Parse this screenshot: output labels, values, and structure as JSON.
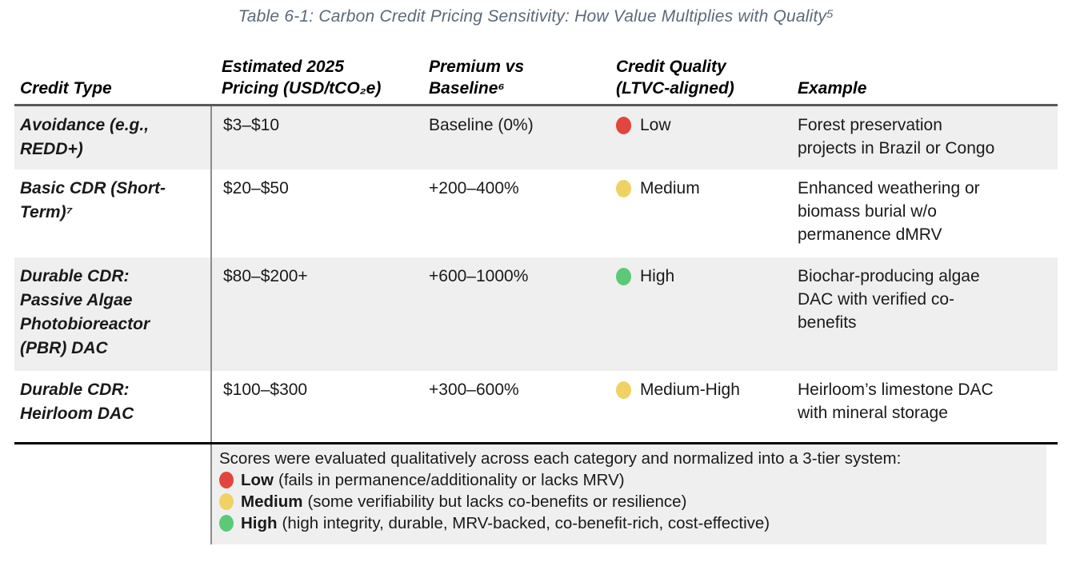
{
  "title": "Table 6-1: Carbon Credit Pricing Sensitivity: How Value Multiplies with Quality⁵",
  "columns": {
    "credit_type": "Credit Type",
    "pricing": "Estimated 2025\nPricing (USD/tCO₂e)",
    "premium": "Premium vs\nBaseline⁶",
    "quality": "Credit Quality\n(LTVC-aligned)",
    "example": "Example"
  },
  "rows": [
    {
      "type": "Avoidance (e.g.,\nREDD+)",
      "pricing": "$3–$10",
      "premium": "Baseline (0%)",
      "quality": {
        "level": "Low",
        "color": "red"
      },
      "example": "Forest preservation\nprojects in Brazil or Congo"
    },
    {
      "type": "Basic CDR (Short-\nTerm)⁷",
      "pricing": "$20–$50",
      "premium": "+200–400%",
      "quality": {
        "level": "Medium",
        "color": "yellow"
      },
      "example": "Enhanced weathering or\nbiomass burial w/o\npermanence dMRV"
    },
    {
      "type": "Durable CDR:\nPassive Algae\nPhotobioreactor\n(PBR) DAC",
      "pricing": "$80–$200+",
      "premium": "+600–1000%",
      "quality": {
        "level": "High",
        "color": "green"
      },
      "example": "Biochar-producing algae\nDAC with verified co-\nbenefits"
    },
    {
      "type": "Durable CDR:\nHeirloom DAC",
      "pricing": "$100–$300",
      "premium": "+300–600%",
      "quality": {
        "level": "Medium-High",
        "color": "yellow"
      },
      "example": "Heirloom’s limestone DAC\nwith mineral storage"
    }
  ],
  "legend": {
    "intro": "Scores were evaluated qualitatively across each category and normalized into a 3-tier system:",
    "tiers": [
      {
        "label": "Low",
        "desc": "(fails in permanence/additionality or lacks MRV)",
        "color": "red"
      },
      {
        "label": "Medium",
        "desc": "(some verifiability but lacks co-benefits or resilience)",
        "color": "yellow"
      },
      {
        "label": "High",
        "desc": "(high integrity, durable, MRV-backed, co-benefit-rich, cost-effective)",
        "color": "green"
      }
    ]
  },
  "colors": {
    "red": "#e2453c",
    "yellow": "#f0d264",
    "green": "#5cc977",
    "row_shade": "#efefef",
    "title_text": "#5b6a78"
  }
}
